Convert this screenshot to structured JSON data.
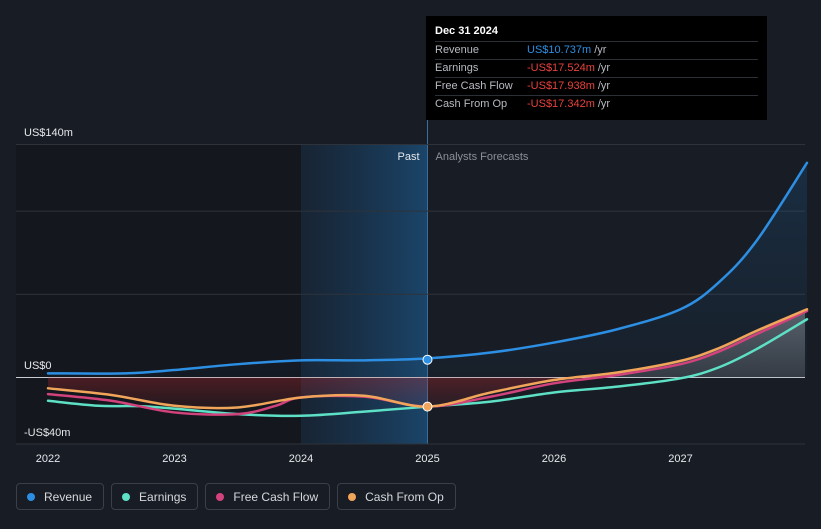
{
  "tooltip": {
    "date": "Dec 31 2024",
    "rows": [
      {
        "label": "Revenue",
        "value": "US$10.737m",
        "unit": "/yr",
        "color": "#2d8fe3"
      },
      {
        "label": "Earnings",
        "value": "-US$17.524m",
        "unit": "/yr",
        "color": "#e8413c"
      },
      {
        "label": "Free Cash Flow",
        "value": "-US$17.938m",
        "unit": "/yr",
        "color": "#e8413c"
      },
      {
        "label": "Cash From Op",
        "value": "-US$17.342m",
        "unit": "/yr",
        "color": "#e8413c"
      }
    ]
  },
  "chart_data": {
    "type": "line",
    "past_label": "Past",
    "forecast_label": "Analysts Forecasts",
    "y_tick_labels": [
      "US$140m",
      "US$0",
      "-US$40m"
    ],
    "y_ticks": [
      140,
      0,
      -40
    ],
    "ylim": [
      -40,
      140
    ],
    "xlim": [
      2022,
      2028
    ],
    "x_ticks": [
      2022,
      2023,
      2024,
      2025,
      2026,
      2027
    ],
    "x_tick_labels": [
      "2022",
      "2023",
      "2024",
      "2025",
      "2026",
      "2027"
    ],
    "past_end": 2025,
    "highlight_start": 2024,
    "grid": true,
    "legend": "bottom-left",
    "series": [
      {
        "name": "Revenue",
        "color": "#2d8fe3",
        "x": [
          2022,
          2022.6,
          2023,
          2023.5,
          2024,
          2024.5,
          2025,
          2025.5,
          2026,
          2026.5,
          2027,
          2027.3,
          2027.6,
          2028
        ],
        "y": [
          2.5,
          2.5,
          4.5,
          8,
          10.3,
          10.3,
          11.5,
          15,
          21,
          29,
          41,
          57,
          82,
          129
        ]
      },
      {
        "name": "Earnings",
        "color": "#5de0c5",
        "x": [
          2022,
          2022.4,
          2022.8,
          2023.5,
          2024,
          2024.5,
          2025,
          2025.5,
          2026,
          2026.5,
          2027,
          2027.3,
          2027.6,
          2028
        ],
        "y": [
          -14,
          -17,
          -17.5,
          -22,
          -23,
          -20.5,
          -17.5,
          -14.5,
          -9,
          -5.5,
          -0.5,
          6,
          17,
          35
        ]
      },
      {
        "name": "Free Cash Flow",
        "color": "#d2427c",
        "x": [
          2022,
          2022.5,
          2023,
          2023.5,
          2023.8,
          2024,
          2024.5,
          2025,
          2025.5,
          2026,
          2026.5,
          2027,
          2027.3,
          2027.6,
          2028
        ],
        "y": [
          -10,
          -14,
          -21,
          -22,
          -17,
          -12,
          -11.5,
          -17.5,
          -11.5,
          -3.5,
          1.5,
          8,
          15.5,
          26,
          40
        ]
      },
      {
        "name": "Cash From Op",
        "color": "#f0a55a",
        "x": [
          2022,
          2022.5,
          2023,
          2023.5,
          2024,
          2024.5,
          2025,
          2025.5,
          2026,
          2026.5,
          2027,
          2027.3,
          2027.6,
          2028
        ],
        "y": [
          -6.5,
          -10.5,
          -17,
          -18,
          -12,
          -11,
          -17.5,
          -9,
          -1.5,
          3,
          10,
          17.5,
          28,
          41
        ]
      }
    ]
  }
}
